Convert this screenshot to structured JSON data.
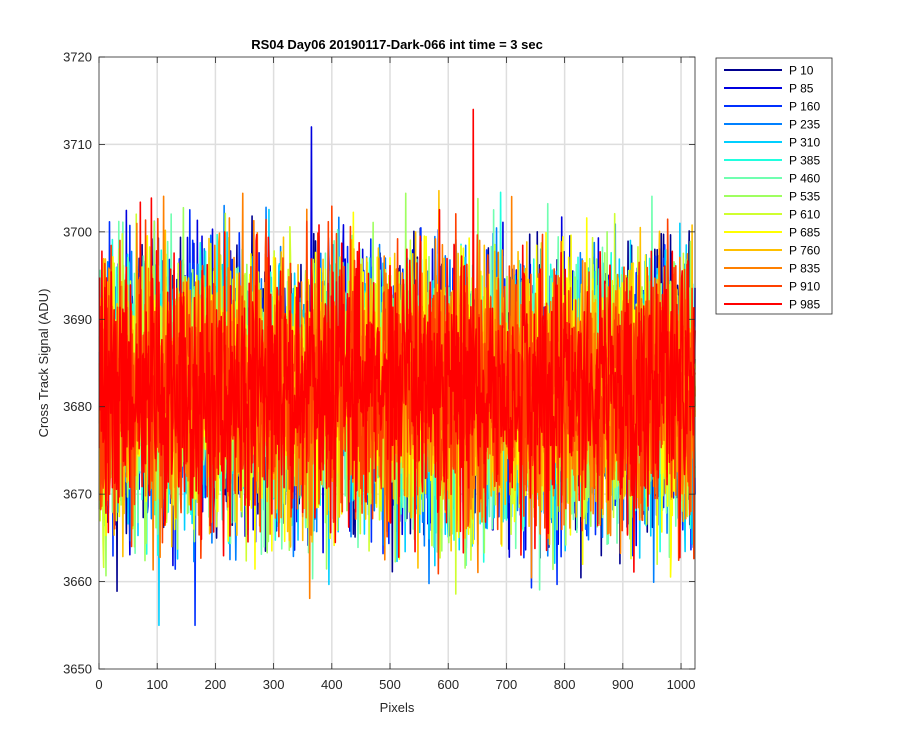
{
  "chart_data": {
    "type": "line",
    "title": "RS04 Day06 20190117-Dark-066 int time = 3 sec",
    "xlabel": "Pixels",
    "ylabel": "Cross Track Signal (ADU)",
    "xlim": [
      0,
      1024
    ],
    "ylim": [
      3650,
      3720
    ],
    "x_ticks": [
      0,
      100,
      200,
      300,
      400,
      500,
      600,
      700,
      800,
      900,
      1000
    ],
    "y_ticks": [
      3650,
      3660,
      3670,
      3680,
      3690,
      3700,
      3710,
      3720
    ],
    "grid": true,
    "legend_position": "outside-top-right",
    "x": {
      "start": 1,
      "end": 1024
    },
    "series": [
      {
        "name": "P 10",
        "color": "#00008F",
        "mean": 3682,
        "spread": 7.5,
        "seed": 11
      },
      {
        "name": "P 85",
        "color": "#0000DF",
        "mean": 3682,
        "spread": 7.5,
        "seed": 23
      },
      {
        "name": "P 160",
        "color": "#0030FF",
        "mean": 3682,
        "spread": 7.5,
        "seed": 37
      },
      {
        "name": "P 235",
        "color": "#0080FF",
        "mean": 3682,
        "spread": 7.5,
        "seed": 41
      },
      {
        "name": "P 310",
        "color": "#00CFFF",
        "mean": 3682,
        "spread": 7.5,
        "seed": 53
      },
      {
        "name": "P 385",
        "color": "#20FFDF",
        "mean": 3682,
        "spread": 7.5,
        "seed": 67
      },
      {
        "name": "P 460",
        "color": "#70FFB0",
        "mean": 3682,
        "spread": 7.5,
        "seed": 71
      },
      {
        "name": "P 535",
        "color": "#9FFF60",
        "mean": 3682,
        "spread": 7.5,
        "seed": 83
      },
      {
        "name": "P 610",
        "color": "#CFFF30",
        "mean": 3682,
        "spread": 7.5,
        "seed": 97
      },
      {
        "name": "P 685",
        "color": "#FFFF00",
        "mean": 3682,
        "spread": 7.5,
        "seed": 101
      },
      {
        "name": "P 760",
        "color": "#FFC000",
        "mean": 3682,
        "spread": 7.5,
        "seed": 113
      },
      {
        "name": "P 835",
        "color": "#FF8000",
        "mean": 3682,
        "spread": 7.5,
        "seed": 127
      },
      {
        "name": "P 910",
        "color": "#FF4000",
        "mean": 3682,
        "spread": 7.5,
        "seed": 131
      },
      {
        "name": "P 985",
        "color": "#FF0000",
        "mean": 3682,
        "spread": 7.5,
        "seed": 139
      }
    ],
    "annotations": {
      "max_spikes": [
        {
          "series": "P 985",
          "x": 643,
          "y": 3714
        },
        {
          "series": "P 85",
          "x": 365,
          "y": 3712
        }
      ],
      "min_spikes": [
        {
          "series": "P 310",
          "x": 103,
          "y": 3655
        },
        {
          "series": "P 160",
          "x": 165,
          "y": 3655
        }
      ]
    }
  }
}
